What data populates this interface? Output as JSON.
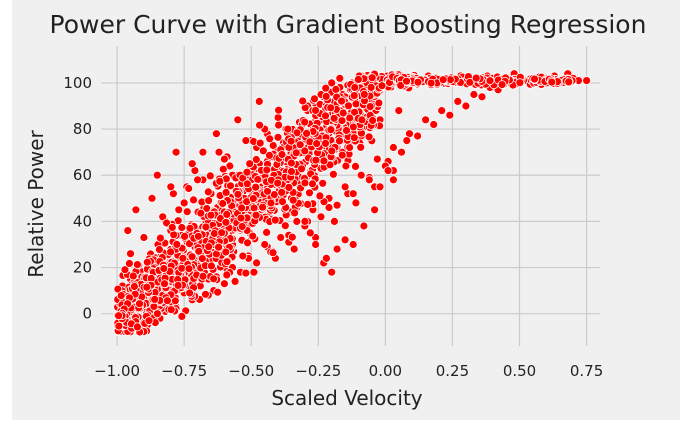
{
  "chart_data": {
    "type": "scatter",
    "title": "Power Curve with Gradient Boosting Regression",
    "xlabel": "Scaled Velocity",
    "ylabel": "Relative Power",
    "xlim": [
      -1.06,
      0.8
    ],
    "ylim": [
      -14,
      116
    ],
    "xticks": [
      -1.0,
      -0.75,
      -0.5,
      -0.25,
      0.0,
      0.25,
      0.5,
      0.75
    ],
    "xtick_labels": [
      "−1.00",
      "−0.75",
      "−0.50",
      "−0.25",
      "0.00",
      "0.25",
      "0.50",
      "0.75"
    ],
    "yticks": [
      0,
      20,
      40,
      60,
      80,
      100
    ],
    "ytick_labels": [
      "0",
      "20",
      "40",
      "60",
      "80",
      "100"
    ],
    "grid": true,
    "colors": {
      "background": "#f0f0f0",
      "plot_background": "#f0f0f0",
      "grid": "#cbcbcb",
      "marker_fill": "#ff0000",
      "marker_edge": "#ffffff"
    },
    "series": [
      {
        "x": [
          -0.99,
          -0.99,
          -0.98,
          -0.98,
          -0.97,
          -0.97,
          -0.96,
          -0.96,
          -0.95,
          -0.95,
          -0.94,
          -0.93,
          -0.92,
          -0.91,
          -0.9,
          -0.89,
          -0.88,
          -0.87,
          -0.86,
          -0.85,
          -0.84,
          -0.83,
          -0.82,
          -0.81,
          -0.8,
          -0.79,
          -0.78,
          -0.77,
          -0.76,
          -0.75,
          -0.74,
          -0.73,
          -0.72,
          -0.71,
          -0.7,
          -0.69,
          -0.68,
          -0.67,
          -0.66,
          -0.65,
          -0.64,
          -0.63,
          -0.62,
          -0.61,
          -0.6,
          -0.59,
          -0.58,
          -0.57,
          -0.56,
          -0.55,
          -0.54,
          -0.53,
          -0.52,
          -0.51,
          -0.5,
          -0.49,
          -0.48,
          -0.47,
          -0.46,
          -0.45,
          -0.44,
          -0.43,
          -0.42,
          -0.41,
          -0.4,
          -0.39,
          -0.38,
          -0.37,
          -0.36,
          -0.35,
          -0.34,
          -0.33,
          -0.32,
          -0.31,
          -0.3,
          -0.29,
          -0.28,
          -0.27,
          -0.26,
          -0.25,
          -0.24,
          -0.23,
          -0.22,
          -0.21,
          -0.2,
          -0.19,
          -0.18,
          -0.17,
          -0.16,
          -0.15,
          -0.14,
          -0.13,
          -0.12,
          -0.11,
          -0.1,
          -0.09,
          -0.08,
          -0.07,
          -0.06,
          -0.05,
          -0.04,
          -0.03,
          -0.02,
          -0.01,
          0.0,
          0.01,
          0.02,
          0.03,
          0.04,
          0.05,
          0.06,
          0.07,
          0.08,
          0.1,
          0.12,
          0.14,
          0.16,
          0.18,
          0.2,
          0.22,
          0.25,
          0.28,
          0.3,
          0.33,
          0.36,
          0.38,
          0.4,
          0.42,
          0.45,
          0.48,
          0.5,
          0.53,
          0.56,
          0.58,
          0.6,
          0.63,
          0.65,
          0.68,
          0.7,
          0.72,
          0.75,
          -0.98,
          -0.97,
          -0.96,
          -0.95,
          -0.93,
          -0.91,
          -0.89,
          -0.87,
          -0.85,
          -0.83,
          -0.8,
          -0.78,
          -0.76,
          -0.73,
          -0.71,
          -0.69,
          -0.66,
          -0.64,
          -0.61,
          -0.59,
          -0.56,
          -0.54,
          -0.51,
          -0.49,
          -0.46,
          -0.44,
          -0.41,
          -0.39,
          -0.36,
          -0.34,
          -0.31,
          -0.29,
          -0.26,
          -0.24,
          -0.21,
          -0.19,
          -0.16,
          -0.14,
          -0.11,
          -0.09,
          -0.06,
          -0.04,
          -0.02,
          0.01,
          0.03,
          0.05,
          -0.98,
          -0.96,
          -0.94,
          -0.92,
          -0.9,
          -0.88,
          -0.86,
          -0.84,
          -0.82,
          -0.8,
          -0.78,
          -0.75,
          -0.72,
          -0.69,
          -0.66,
          -0.63,
          -0.6,
          -0.57,
          -0.54,
          -0.51,
          -0.48,
          -0.45,
          -0.42,
          -0.39,
          -0.36,
          -0.33,
          -0.3,
          -0.27,
          -0.24,
          -0.21,
          -0.18,
          -0.15,
          -0.12,
          -0.09,
          -0.06,
          -0.03,
          0.0,
          0.03,
          0.06,
          0.09,
          0.12,
          0.15,
          0.18,
          0.21,
          0.24,
          0.27,
          0.3,
          0.33,
          0.36,
          0.39,
          0.42,
          -0.82,
          -0.79,
          -0.77,
          -0.74,
          -0.71,
          -0.68,
          -0.62,
          -0.59,
          -0.58,
          -0.55,
          -0.5,
          -0.48,
          -0.47,
          -0.44,
          -0.4,
          -0.37,
          -0.34,
          -0.31,
          -0.29,
          -0.27,
          -0.24,
          -0.22,
          -0.2,
          -0.17,
          -0.96,
          -0.93,
          -0.9,
          -0.87,
          -0.85,
          -0.83,
          -0.8,
          -0.78,
          -0.75,
          -0.72,
          -0.7,
          -0.68,
          -0.65,
          -0.63,
          -0.6,
          -0.57,
          -0.55,
          -0.52,
          -0.5,
          -0.47,
          -0.45,
          -0.42,
          -0.38,
          -0.35,
          -0.33,
          -0.3,
          -0.28,
          -0.26,
          -0.23,
          -0.22,
          -0.2,
          -0.18,
          -0.15,
          -0.12,
          -0.08,
          -0.04,
          -0.02,
          0.01,
          0.03,
          0.08
        ],
        "y": [
          -2,
          6,
          3,
          12,
          -1,
          18,
          5,
          2,
          9,
          26,
          4,
          1,
          7,
          15,
          3,
          11,
          6,
          2,
          10,
          5,
          14,
          8,
          18,
          12,
          9,
          22,
          16,
          14,
          28,
          20,
          19,
          33,
          25,
          18,
          30,
          24,
          27,
          39,
          21,
          31,
          35,
          27,
          30,
          44,
          33,
          40,
          38,
          36,
          49,
          42,
          41,
          53,
          47,
          43,
          58,
          48,
          51,
          62,
          55,
          50,
          66,
          58,
          56,
          71,
          63,
          60,
          74,
          67,
          64,
          78,
          71,
          70,
          83,
          76,
          75,
          88,
          82,
          80,
          91,
          86,
          84,
          94,
          90,
          88,
          96,
          92,
          91,
          98,
          95,
          94,
          99,
          97,
          96,
          100,
          98,
          99,
          101,
          100,
          99,
          101,
          102,
          100,
          101,
          102,
          101,
          103,
          101,
          102,
          102,
          101,
          103,
          102,
          101,
          102,
          102,
          101,
          103,
          102,
          101,
          102,
          102,
          103,
          102,
          101,
          102,
          103,
          102,
          101,
          102,
          104,
          102,
          101,
          102,
          101,
          102,
          103,
          101,
          104,
          102,
          101,
          101,
          0,
          8,
          4,
          15,
          2,
          13,
          0,
          9,
          4,
          18,
          7,
          3,
          20,
          12,
          8,
          26,
          15,
          10,
          33,
          19,
          14,
          38,
          25,
          18,
          44,
          29,
          24,
          51,
          34,
          28,
          57,
          40,
          33,
          63,
          46,
          40,
          70,
          52,
          48,
          77,
          59,
          55,
          84,
          66,
          62,
          88,
          -6,
          -4,
          -1,
          2,
          -3,
          0,
          3,
          -2,
          1,
          5,
          3,
          9,
          6,
          12,
          8,
          16,
          13,
          20,
          18,
          24,
          22,
          30,
          27,
          33,
          31,
          40,
          38,
          45,
          42,
          50,
          47,
          55,
          52,
          60,
          58,
          67,
          64,
          72,
          70,
          78,
          77,
          84,
          82,
          88,
          86,
          92,
          90,
          95,
          94,
          98,
          97,
          40,
          52,
          45,
          55,
          62,
          58,
          70,
          68,
          64,
          60,
          75,
          72,
          65,
          78,
          85,
          80,
          75,
          82,
          90,
          88,
          95,
          85,
          100,
          102,
          36,
          45,
          33,
          50,
          60,
          42,
          55,
          70,
          48,
          65,
          58,
          70,
          52,
          78,
          67,
          60,
          84,
          75,
          62,
          92,
          80,
          68,
          55,
          50,
          46,
          40,
          35,
          30,
          22,
          24,
          18,
          28,
          32,
          30,
          38,
          45,
          55,
          62,
          58,
          75
        ],
        "pattern": "dense_band"
      }
    ]
  }
}
